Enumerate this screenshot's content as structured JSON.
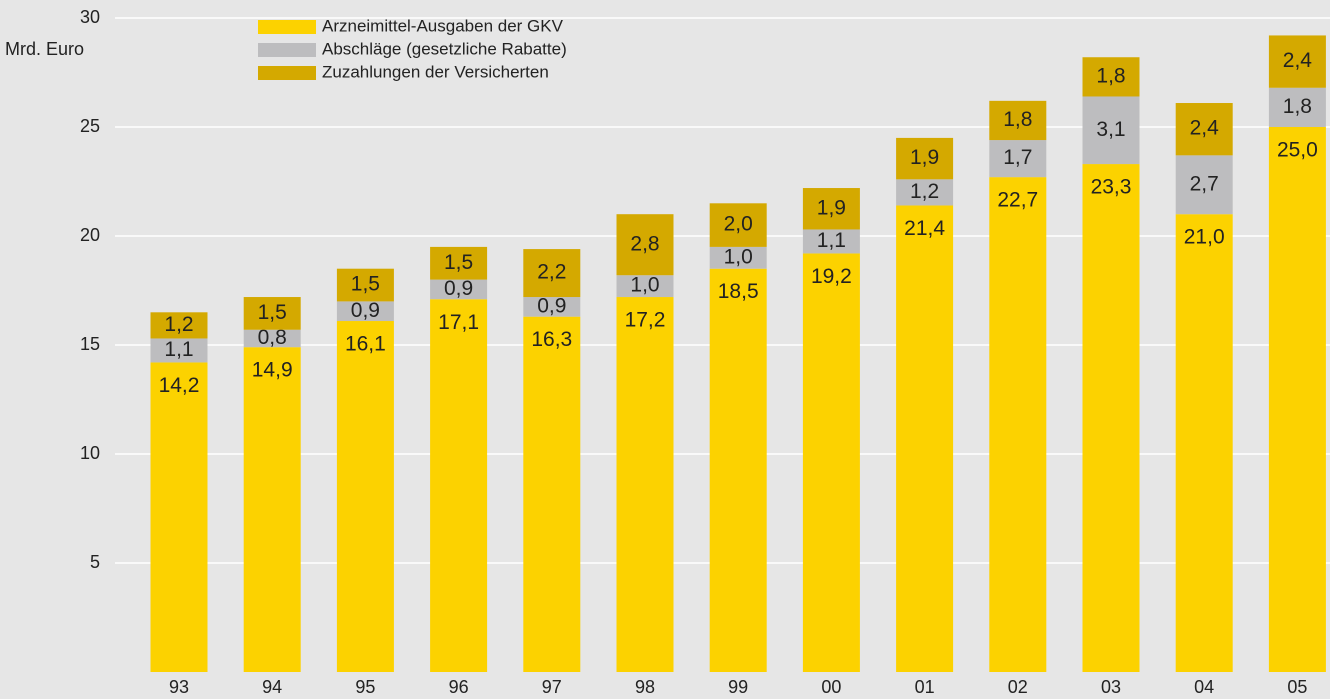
{
  "chart_data": {
    "type": "stacked-bar",
    "y_label": "Mrd. Euro",
    "categories": [
      "93",
      "94",
      "95",
      "96",
      "97",
      "98",
      "99",
      "00",
      "01",
      "02",
      "03",
      "04",
      "05"
    ],
    "series": [
      {
        "name": "Arzneimittel-Ausgaben der GKV",
        "color": "#fcd200",
        "values": [
          14.2,
          14.9,
          16.1,
          17.1,
          16.3,
          17.2,
          18.5,
          19.2,
          21.4,
          22.7,
          23.3,
          21.0,
          25.0
        ],
        "value_labels": [
          "14,2",
          "14,9",
          "16,1",
          "17,1",
          "16,3",
          "17,2",
          "18,5",
          "19,2",
          "21,4",
          "22,7",
          "23,3",
          "21,0",
          "25,0"
        ]
      },
      {
        "name": "Abschläge (gesetzliche Rabatte)",
        "color": "#bdbdbf",
        "values": [
          1.1,
          0.8,
          0.9,
          0.9,
          0.9,
          1.0,
          1.0,
          1.1,
          1.2,
          1.7,
          3.1,
          2.7,
          1.8
        ],
        "value_labels": [
          "1,1",
          "0,8",
          "0,9",
          "0,9",
          "0,9",
          "1,0",
          "1,0",
          "1,1",
          "1,2",
          "1,7",
          "3,1",
          "2,7",
          "1,8"
        ]
      },
      {
        "name": "Zuzahlungen der Versicherten",
        "color": "#d4a900",
        "values": [
          1.2,
          1.5,
          1.5,
          1.5,
          2.2,
          2.8,
          2.0,
          1.9,
          1.9,
          1.8,
          1.8,
          2.4,
          2.4
        ],
        "value_labels": [
          "1,2",
          "1,5",
          "1,5",
          "1,5",
          "2,2",
          "2,8",
          "2,0",
          "1,9",
          "1,9",
          "1,8",
          "1,8",
          "2,4",
          "2,4"
        ]
      }
    ],
    "ylim": [
      0,
      30
    ],
    "yticks": [
      5,
      10,
      15,
      20,
      25,
      30
    ],
    "grid": true
  }
}
